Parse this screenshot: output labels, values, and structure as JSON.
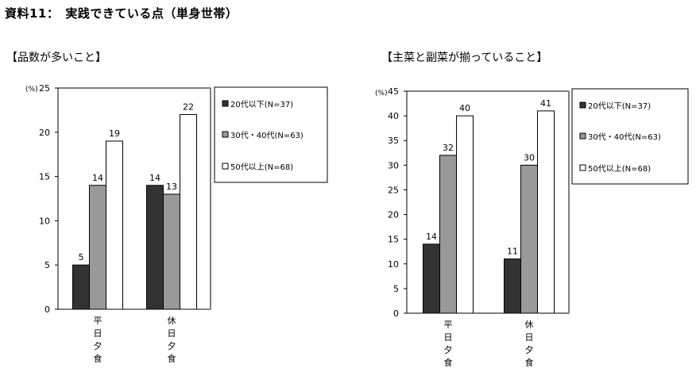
{
  "page_title": "資料11：　実践できている点（単身世帯）",
  "colors": {
    "series_0": "#333333",
    "series_1": "#999999",
    "series_2": "#ffffff"
  },
  "chart_data": [
    {
      "type": "bar",
      "title": "【品数が多いこと】",
      "ylabel": "(%)",
      "ylim": [
        0,
        25
      ],
      "yticks": [
        0,
        5,
        10,
        15,
        20,
        25
      ],
      "grid": false,
      "legend": "right",
      "categories": [
        "平日夕食",
        "休日夕食"
      ],
      "series": [
        {
          "name": "20代以下(N=37)",
          "values": [
            5,
            14
          ],
          "labels": [
            "5",
            "14"
          ],
          "color": "#333333"
        },
        {
          "name": "30代・40代(N=63)",
          "values": [
            14,
            13
          ],
          "labels": [
            "14",
            "13"
          ],
          "color": "#999999"
        },
        {
          "name": "50代以上(N=68)",
          "values": [
            19,
            22
          ],
          "labels": [
            "19",
            "22"
          ],
          "color": "#ffffff"
        }
      ]
    },
    {
      "type": "bar",
      "title": "【主菜と副菜が揃っていること】",
      "ylabel": "(%)",
      "ylim": [
        0,
        45
      ],
      "yticks": [
        0,
        5,
        10,
        15,
        20,
        25,
        30,
        35,
        40,
        45
      ],
      "grid": false,
      "legend": "right",
      "categories": [
        "平日夕食",
        "休日夕食"
      ],
      "series": [
        {
          "name": "20代以下(N=37)",
          "values": [
            14,
            11
          ],
          "labels": [
            "14",
            "11"
          ],
          "color": "#333333"
        },
        {
          "name": "30代・40代(N=63)",
          "values": [
            32,
            30
          ],
          "labels": [
            "32",
            "30"
          ],
          "color": "#999999"
        },
        {
          "name": "50代以上(N=68)",
          "values": [
            40,
            41
          ],
          "labels": [
            "40",
            "41"
          ],
          "color": "#ffffff"
        }
      ]
    }
  ]
}
